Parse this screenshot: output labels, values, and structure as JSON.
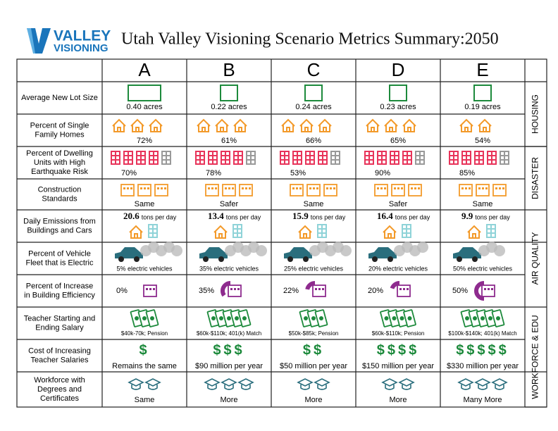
{
  "header": {
    "logo": [
      "VALLEY",
      "VISIONING"
    ],
    "title": "Utah Valley Visioning Scenario Metrics Summary:2050"
  },
  "table": {
    "columns": [
      "A",
      "B",
      "C",
      "D",
      "E"
    ],
    "rows": [
      {
        "label": [
          "Average New Lot Size"
        ],
        "cells": [
          "0.40 acres",
          "0.22 acres",
          "0.24 acres",
          "0.23 acres",
          "0.19 acres"
        ]
      },
      {
        "label": [
          "Percent of Single",
          "Family Homes"
        ],
        "cells": [
          "72%",
          "61%",
          "66%",
          "65%",
          "54%"
        ]
      },
      {
        "label": [
          "Percent of Dwelling",
          "Units with High",
          "Earthquake Risk"
        ],
        "cells": [
          "70%",
          "78%",
          "53%",
          "90%",
          "85%"
        ]
      },
      {
        "label": [
          "Construction",
          "Standards"
        ],
        "cells": [
          "Same",
          "Safer",
          "Same",
          "Safer",
          "Same"
        ]
      },
      {
        "label": [
          "Daily Emissions from",
          "Buildings and Cars"
        ],
        "cells": [
          [
            "20.6",
            "tons per day"
          ],
          [
            "13.4",
            "tons per day"
          ],
          [
            "15.9",
            "tons per day"
          ],
          [
            "16.4",
            "tons per day"
          ],
          [
            "9.9",
            "tons per day"
          ]
        ]
      },
      {
        "label": [
          "Percent of Vehicle",
          "Fleet that is Electric"
        ],
        "cells": [
          "5% electric vehicles",
          "35% electric vehicles",
          "25% electric vehicles",
          "20% electric vehicles",
          "50% electric vehicles"
        ]
      },
      {
        "label": [
          "Percent of Increase",
          "in Building Efficiency"
        ],
        "cells": [
          "0%",
          "35%",
          "22%",
          "20%",
          "50%"
        ]
      },
      {
        "label": [
          "Teacher Starting and",
          "Ending Salary"
        ],
        "cells": [
          "$40k-70k; Pension",
          "$60k-$110k; 401(k) Match",
          "$50k-$85k; Pension",
          "$60k-$110k; Pension",
          "$100k-$140k; 401(k) Match"
        ]
      },
      {
        "label": [
          "Cost of Increasing",
          "Teacher Salaries"
        ],
        "cells": [
          [
            "$",
            "Remains the same"
          ],
          [
            "$$$",
            "$90 million per year"
          ],
          [
            "$$",
            "$50 million per year"
          ],
          [
            "$$$$",
            "$150 million per year"
          ],
          [
            "$$$$$",
            "$330 million per year"
          ]
        ]
      },
      {
        "label": [
          "Workforce with",
          "Degrees and",
          "Certificates"
        ],
        "cells": [
          "Same",
          "More",
          "More",
          "More",
          "Many More"
        ]
      }
    ],
    "categories": [
      "HOUSING",
      "DISASTER",
      "AIR QUALITY",
      "WORKFORCE & EDU"
    ]
  }
}
